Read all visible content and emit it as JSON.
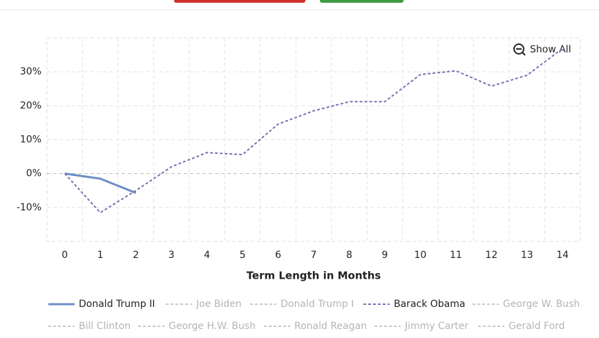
{
  "chart_data": {
    "type": "line",
    "x_label": "Term Length in Months",
    "show_all": "Show All",
    "categories": [
      "0",
      "1",
      "2",
      "3",
      "4",
      "5",
      "6",
      "7",
      "8",
      "9",
      "10",
      "11",
      "12",
      "13",
      "14"
    ],
    "ylim": [
      -20,
      40
    ],
    "yticks": [
      {
        "value": -10,
        "label": "-10%"
      },
      {
        "value": 0,
        "label": "0%"
      },
      {
        "value": 10,
        "label": "10%"
      },
      {
        "value": 20,
        "label": "20%"
      },
      {
        "value": 30,
        "label": "30%"
      }
    ],
    "grid": true,
    "series": [
      {
        "name": "Donald Trump II",
        "color": "#6b8cc6",
        "visible": true,
        "dash": false,
        "values": [
          0,
          -1.5,
          -5.7,
          null,
          null,
          null,
          null,
          null,
          null,
          null,
          null,
          null,
          null,
          null,
          null
        ]
      },
      {
        "name": "Joe Biden",
        "color": "#c8c8c8",
        "visible": false,
        "dash": true,
        "values": [
          null,
          null,
          null,
          null,
          null,
          null,
          null,
          null,
          null,
          null,
          null,
          null,
          null,
          null,
          null
        ]
      },
      {
        "name": "Donald Trump I",
        "color": "#c8c8c8",
        "visible": false,
        "dash": true,
        "values": [
          null,
          null,
          null,
          null,
          null,
          null,
          null,
          null,
          null,
          null,
          null,
          null,
          null,
          null,
          null
        ]
      },
      {
        "name": "Barack Obama",
        "color": "#7a6db0",
        "visible": true,
        "dash": true,
        "values": [
          0,
          -11.5,
          -5,
          2,
          6.2,
          5.6,
          14.6,
          18.5,
          21.2,
          21.2,
          29.2,
          30.3,
          25.8,
          29,
          36.9
        ]
      },
      {
        "name": "George W. Bush",
        "color": "#c8c8c8",
        "visible": false,
        "dash": true,
        "values": [
          null,
          null,
          null,
          null,
          null,
          null,
          null,
          null,
          null,
          null,
          null,
          null,
          null,
          null,
          null
        ]
      },
      {
        "name": "Bill Clinton",
        "color": "#c8c8c8",
        "visible": false,
        "dash": true,
        "values": [
          null,
          null,
          null,
          null,
          null,
          null,
          null,
          null,
          null,
          null,
          null,
          null,
          null,
          null,
          null
        ]
      },
      {
        "name": "George H.W. Bush",
        "color": "#c8c8c8",
        "visible": false,
        "dash": true,
        "values": [
          null,
          null,
          null,
          null,
          null,
          null,
          null,
          null,
          null,
          null,
          null,
          null,
          null,
          null,
          null
        ]
      },
      {
        "name": "Ronald Reagan",
        "color": "#c8c8c8",
        "visible": false,
        "dash": true,
        "values": [
          null,
          null,
          null,
          null,
          null,
          null,
          null,
          null,
          null,
          null,
          null,
          null,
          null,
          null,
          null
        ]
      },
      {
        "name": "Jimmy Carter",
        "color": "#c8c8c8",
        "visible": false,
        "dash": true,
        "values": [
          null,
          null,
          null,
          null,
          null,
          null,
          null,
          null,
          null,
          null,
          null,
          null,
          null,
          null,
          null
        ]
      },
      {
        "name": "Gerald Ford",
        "color": "#c8c8c8",
        "visible": false,
        "dash": true,
        "values": [
          null,
          null,
          null,
          null,
          null,
          null,
          null,
          null,
          null,
          null,
          null,
          null,
          null,
          null,
          null
        ]
      }
    ]
  }
}
